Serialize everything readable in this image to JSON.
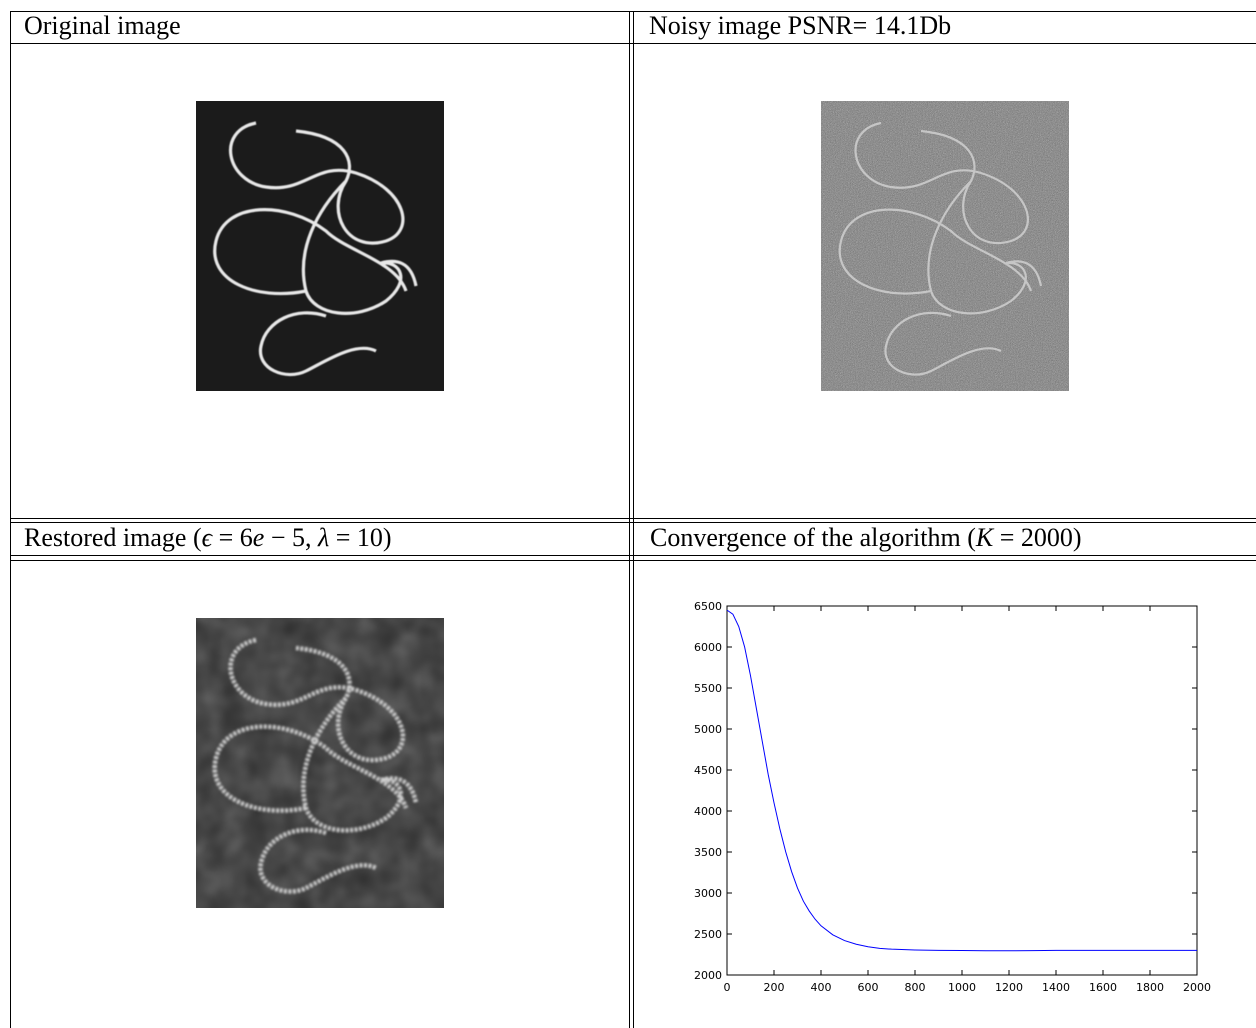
{
  "captions": {
    "top_left": "Original image",
    "top_right": "Noisy image PSNR= 14.1Db",
    "bottom_left_prefix": "Restored image (",
    "bottom_left_eps": "ϵ",
    "bottom_left_eq1": " = 6",
    "bottom_left_e": "e",
    "bottom_left_mid": " − 5, ",
    "bottom_left_lambda": "λ",
    "bottom_left_eq2": " = 10)",
    "bottom_right_prefix": "Convergence of the algorithm (",
    "bottom_right_K": "K",
    "bottom_right_suffix": " = 2000)"
  },
  "chart_data": {
    "type": "line",
    "title": "",
    "xlabel": "",
    "ylabel": "",
    "xlim": [
      0,
      2000
    ],
    "ylim": [
      2000,
      6500
    ],
    "x_ticks": [
      0,
      200,
      400,
      600,
      800,
      1000,
      1200,
      1400,
      1600,
      1800,
      2000
    ],
    "y_ticks": [
      2000,
      2500,
      3000,
      3500,
      4000,
      4500,
      5000,
      5500,
      6000,
      6500
    ],
    "series": [
      {
        "color": "#0000ff",
        "x": [
          0,
          25,
          50,
          75,
          100,
          125,
          150,
          175,
          200,
          225,
          250,
          275,
          300,
          325,
          350,
          375,
          400,
          450,
          500,
          550,
          600,
          650,
          700,
          800,
          900,
          1000,
          1100,
          1200,
          1300,
          1400,
          1600,
          1800,
          2000
        ],
        "y": [
          6450,
          6400,
          6250,
          6000,
          5650,
          5250,
          4850,
          4450,
          4100,
          3780,
          3500,
          3260,
          3060,
          2900,
          2780,
          2680,
          2600,
          2490,
          2420,
          2375,
          2345,
          2325,
          2315,
          2305,
          2300,
          2298,
          2295,
          2295,
          2297,
          2300,
          2300,
          2300,
          2300
        ]
      }
    ]
  }
}
